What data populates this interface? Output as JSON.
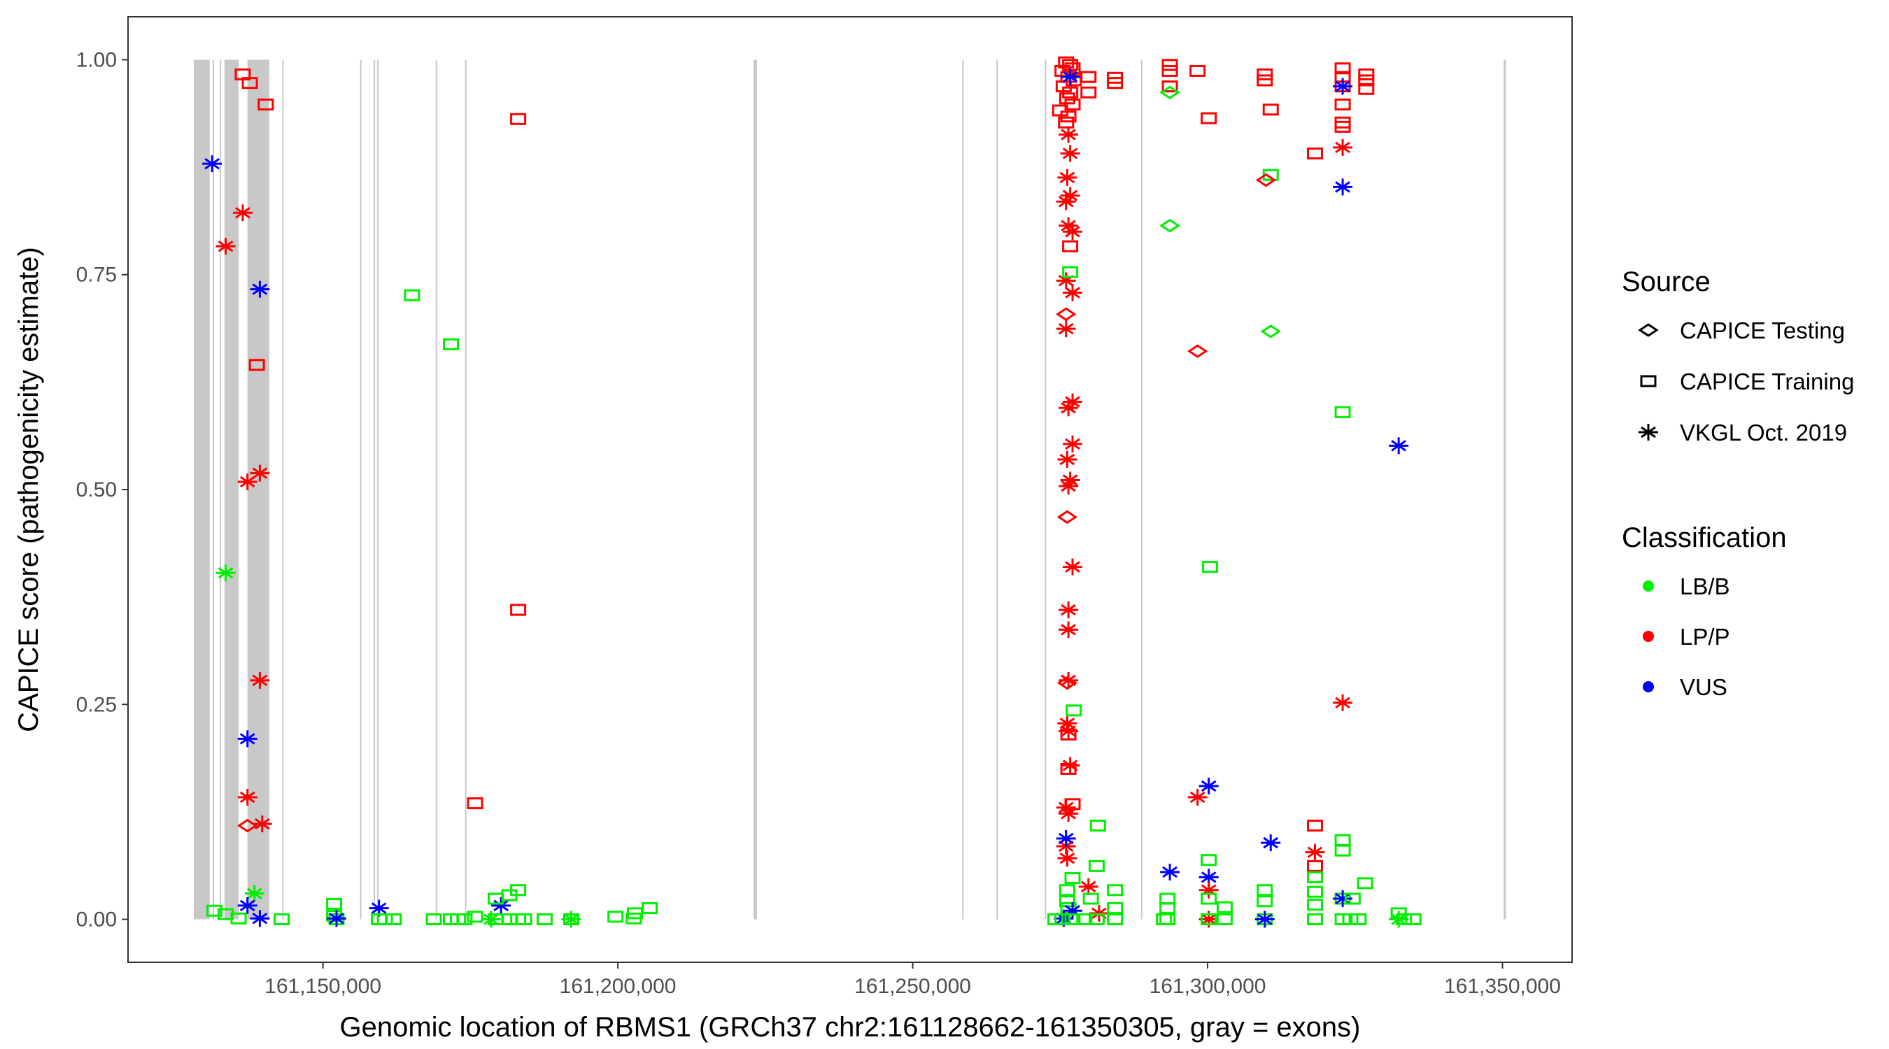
{
  "chart_data": {
    "type": "scatter",
    "title": "",
    "xlabel": "Genomic location of RBMS1 (GRCh37 chr2:161128662-161350305, gray = exons)",
    "ylabel": "CAPICE score (pathogenicity estimate)",
    "xlim": [
      161116950,
      161361800
    ],
    "ylim": [
      -0.05,
      1.05
    ],
    "x_ticks": [
      161150000,
      161200000,
      161250000,
      161300000,
      161350000
    ],
    "x_tick_labels": [
      "161,150,000",
      "161,200,000",
      "161,250,000",
      "161,300,000",
      "161,350,000"
    ],
    "y_ticks": [
      0,
      0.25,
      0.5,
      0.75,
      1.0
    ],
    "y_tick_labels": [
      "0.00",
      "0.25",
      "0.50",
      "0.75",
      "1.00"
    ],
    "grid": false,
    "legend_placement": "right",
    "legend": {
      "source_title": "Source",
      "sources": [
        "CAPICE Testing",
        "CAPICE Training",
        "VKGL Oct. 2019"
      ],
      "source_shapes": [
        "diamond",
        "square",
        "star"
      ],
      "class_title": "Classification",
      "classes": [
        "LB/B",
        "LP/P",
        "VUS"
      ],
      "class_colors": [
        "#00ee00",
        "#ff0000",
        "#0000ff"
      ]
    },
    "exons": [
      [
        161128100,
        161130800
      ],
      [
        161131300,
        161131500
      ],
      [
        161132500,
        161132700
      ],
      [
        161133300,
        161135700
      ],
      [
        161137200,
        161140900
      ],
      [
        161143100,
        161143300
      ],
      [
        161156300,
        161156500
      ],
      [
        161158600,
        161158800
      ],
      [
        161159200,
        161159400
      ],
      [
        161169100,
        161169300
      ],
      [
        161174100,
        161174300
      ],
      [
        161223000,
        161223600
      ],
      [
        161258400,
        161258600
      ],
      [
        161264200,
        161264400
      ],
      [
        161272400,
        161272600
      ],
      [
        161288700,
        161288900
      ],
      [
        161350200,
        161350600
      ]
    ],
    "points_format": [
      "position",
      "score",
      "source_index",
      "class_index"
    ],
    "points": [
      [
        161136400,
        0.983,
        1,
        1
      ],
      [
        161137600,
        0.973,
        1,
        1
      ],
      [
        161140300,
        0.948,
        1,
        1
      ],
      [
        161131200,
        0.879,
        2,
        2
      ],
      [
        161136400,
        0.822,
        2,
        1
      ],
      [
        161133500,
        0.783,
        2,
        1
      ],
      [
        161139300,
        0.733,
        2,
        2
      ],
      [
        161138800,
        0.645,
        1,
        1
      ],
      [
        161139300,
        0.519,
        2,
        1
      ],
      [
        161137200,
        0.509,
        2,
        1
      ],
      [
        161133500,
        0.403,
        2,
        0
      ],
      [
        161183100,
        0.931,
        1,
        1
      ],
      [
        161183100,
        0.36,
        1,
        1
      ],
      [
        161139300,
        0.278,
        2,
        1
      ],
      [
        161137200,
        0.21,
        2,
        2
      ],
      [
        161137200,
        0.142,
        2,
        1
      ],
      [
        161137200,
        0.109,
        0,
        1
      ],
      [
        161139700,
        0.111,
        2,
        1
      ],
      [
        161175800,
        0.135,
        1,
        1
      ],
      [
        161165100,
        0.726,
        1,
        0
      ],
      [
        161171700,
        0.669,
        1,
        0
      ],
      [
        161138400,
        0.03,
        2,
        0
      ],
      [
        161137200,
        0.016,
        2,
        2
      ],
      [
        161139300,
        0.001,
        2,
        2
      ],
      [
        161131600,
        0.01,
        1,
        0
      ],
      [
        161133500,
        0.006,
        1,
        0
      ],
      [
        161135700,
        0.001,
        1,
        0
      ],
      [
        161143000,
        0,
        1,
        0
      ],
      [
        161151900,
        0.018,
        1,
        0
      ],
      [
        161151900,
        0.004,
        1,
        0
      ],
      [
        161152300,
        0,
        1,
        0
      ],
      [
        161152300,
        0.001,
        2,
        2
      ],
      [
        161159500,
        0.013,
        2,
        2
      ],
      [
        161159500,
        0,
        1,
        0
      ],
      [
        161160500,
        0,
        1,
        0
      ],
      [
        161162000,
        0,
        1,
        0
      ],
      [
        161168800,
        0,
        1,
        0
      ],
      [
        161171700,
        0,
        1,
        0
      ],
      [
        161172900,
        0,
        1,
        0
      ],
      [
        161174000,
        0,
        1,
        0
      ],
      [
        161175800,
        0.003,
        1,
        0
      ],
      [
        161180200,
        0.016,
        2,
        2
      ],
      [
        161179300,
        0.024,
        1,
        0
      ],
      [
        161181600,
        0.028,
        1,
        0
      ],
      [
        161183100,
        0.034,
        1,
        0
      ],
      [
        161179300,
        0,
        1,
        0
      ],
      [
        161181600,
        0,
        1,
        0
      ],
      [
        161183100,
        0,
        1,
        0
      ],
      [
        161184100,
        0,
        1,
        0
      ],
      [
        161178500,
        0,
        2,
        0
      ],
      [
        161187600,
        0,
        1,
        0
      ],
      [
        161192100,
        0,
        1,
        0
      ],
      [
        161192100,
        0,
        2,
        0
      ],
      [
        161199600,
        0.003,
        1,
        0
      ],
      [
        161202700,
        0.001,
        1,
        0
      ],
      [
        161202900,
        0.007,
        1,
        0
      ],
      [
        161205400,
        0.013,
        1,
        0
      ],
      [
        161276000,
        0.997,
        1,
        1
      ],
      [
        161276700,
        0.994,
        1,
        1
      ],
      [
        161277100,
        0.99,
        1,
        1
      ],
      [
        161275400,
        0.987,
        1,
        1
      ],
      [
        161276400,
        0.98,
        1,
        1
      ],
      [
        161277300,
        0.976,
        1,
        1
      ],
      [
        161275600,
        0.969,
        1,
        1
      ],
      [
        161276700,
        0.962,
        1,
        1
      ],
      [
        161276200,
        0.955,
        1,
        1
      ],
      [
        161277100,
        0.948,
        1,
        1
      ],
      [
        161275000,
        0.941,
        1,
        1
      ],
      [
        161276400,
        0.934,
        1,
        1
      ],
      [
        161276000,
        0.927,
        1,
        1
      ],
      [
        161279800,
        0.98,
        1,
        1
      ],
      [
        161279800,
        0.962,
        1,
        1
      ],
      [
        161284300,
        0.979,
        1,
        1
      ],
      [
        161284300,
        0.973,
        1,
        1
      ],
      [
        161276700,
        0.98,
        2,
        2
      ],
      [
        161276400,
        0.913,
        2,
        1
      ],
      [
        161276700,
        0.891,
        2,
        1
      ],
      [
        161276200,
        0.863,
        2,
        1
      ],
      [
        161276700,
        0.842,
        2,
        1
      ],
      [
        161276000,
        0.835,
        2,
        1
      ],
      [
        161276400,
        0.807,
        2,
        1
      ],
      [
        161277100,
        0.8,
        2,
        1
      ],
      [
        161276000,
        0.743,
        2,
        1
      ],
      [
        161277100,
        0.729,
        2,
        1
      ],
      [
        161276000,
        0.687,
        2,
        1
      ],
      [
        161277100,
        0.602,
        2,
        1
      ],
      [
        161276400,
        0.595,
        2,
        1
      ],
      [
        161277100,
        0.553,
        2,
        1
      ],
      [
        161276200,
        0.535,
        2,
        1
      ],
      [
        161276700,
        0.511,
        2,
        1
      ],
      [
        161276400,
        0.504,
        2,
        1
      ],
      [
        161277100,
        0.41,
        2,
        1
      ],
      [
        161276400,
        0.36,
        2,
        1
      ],
      [
        161276400,
        0.337,
        2,
        1
      ],
      [
        161276400,
        0.278,
        2,
        1
      ],
      [
        161276200,
        0.228,
        2,
        1
      ],
      [
        161276400,
        0.219,
        2,
        1
      ],
      [
        161276700,
        0.179,
        2,
        1
      ],
      [
        161276000,
        0.13,
        2,
        1
      ],
      [
        161276400,
        0.123,
        2,
        1
      ],
      [
        161276000,
        0.085,
        2,
        1
      ],
      [
        161276200,
        0.071,
        2,
        1
      ],
      [
        161279800,
        0.038,
        2,
        1
      ],
      [
        161281600,
        0.007,
        2,
        1
      ],
      [
        161276000,
        0.704,
        0,
        1
      ],
      [
        161276200,
        0.468,
        0,
        1
      ],
      [
        161276200,
        0.275,
        0,
        1
      ],
      [
        161276700,
        0.783,
        1,
        1
      ],
      [
        161277100,
        0.134,
        1,
        1
      ],
      [
        161276400,
        0.175,
        1,
        1
      ],
      [
        161276400,
        0.215,
        1,
        1
      ],
      [
        161276700,
        0.753,
        1,
        0
      ],
      [
        161277300,
        0.243,
        1,
        0
      ],
      [
        161281400,
        0.109,
        1,
        0
      ],
      [
        161277100,
        0.048,
        1,
        0
      ],
      [
        161281200,
        0.062,
        1,
        0
      ],
      [
        161276200,
        0.034,
        1,
        0
      ],
      [
        161276200,
        0.021,
        1,
        0
      ],
      [
        161276400,
        0.013,
        1,
        0
      ],
      [
        161276000,
        0.094,
        2,
        2
      ],
      [
        161277100,
        0.01,
        2,
        2
      ],
      [
        161275600,
        0.001,
        2,
        2
      ],
      [
        161274200,
        0,
        1,
        0
      ],
      [
        161275400,
        0,
        1,
        0
      ],
      [
        161277100,
        0,
        1,
        0
      ],
      [
        161279100,
        0,
        1,
        0
      ],
      [
        161281200,
        0,
        1,
        0
      ],
      [
        161284300,
        0,
        1,
        0
      ],
      [
        161284300,
        0.013,
        1,
        0
      ],
      [
        161284300,
        0.034,
        1,
        0
      ],
      [
        161280200,
        0.024,
        1,
        0
      ],
      [
        161293600,
        0.994,
        1,
        1
      ],
      [
        161293600,
        0.987,
        1,
        1
      ],
      [
        161293600,
        0.969,
        1,
        1
      ],
      [
        161293600,
        0.962,
        0,
        0
      ],
      [
        161298300,
        0.987,
        1,
        1
      ],
      [
        161293600,
        0.807,
        0,
        0
      ],
      [
        161300200,
        0.932,
        1,
        1
      ],
      [
        161298300,
        0.661,
        0,
        1
      ],
      [
        161298300,
        0.142,
        2,
        1
      ],
      [
        161293600,
        0.055,
        2,
        2
      ],
      [
        161293200,
        0.024,
        1,
        0
      ],
      [
        161293200,
        0.013,
        1,
        0
      ],
      [
        161293200,
        0,
        1,
        0
      ],
      [
        161292600,
        0,
        1,
        0
      ],
      [
        161300400,
        0.41,
        1,
        0
      ],
      [
        161300200,
        0.069,
        1,
        0
      ],
      [
        161300200,
        0.155,
        2,
        2
      ],
      [
        161300200,
        0.049,
        2,
        2
      ],
      [
        161300200,
        0.034,
        2,
        1
      ],
      [
        161300200,
        0,
        2,
        1
      ],
      [
        161300200,
        0.024,
        1,
        0
      ],
      [
        161302900,
        0.014,
        1,
        0
      ],
      [
        161302900,
        0,
        1,
        0
      ],
      [
        161300200,
        0,
        1,
        0
      ],
      [
        161309700,
        0.983,
        1,
        1
      ],
      [
        161309700,
        0.976,
        1,
        1
      ],
      [
        161310700,
        0.942,
        1,
        1
      ],
      [
        161310700,
        0.866,
        1,
        0
      ],
      [
        161309900,
        0.86,
        0,
        1
      ],
      [
        161310700,
        0.684,
        0,
        0
      ],
      [
        161310700,
        0.089,
        2,
        2
      ],
      [
        161309700,
        0.034,
        1,
        0
      ],
      [
        161309700,
        0.021,
        1,
        0
      ],
      [
        161309700,
        0,
        1,
        0
      ],
      [
        161309700,
        0,
        2,
        2
      ],
      [
        161318200,
        0.891,
        1,
        1
      ],
      [
        161318200,
        0.109,
        1,
        1
      ],
      [
        161318200,
        0.078,
        2,
        1
      ],
      [
        161318200,
        0.062,
        1,
        1
      ],
      [
        161318200,
        0.049,
        1,
        0
      ],
      [
        161318200,
        0.032,
        1,
        0
      ],
      [
        161318200,
        0.017,
        1,
        0
      ],
      [
        161318200,
        0,
        1,
        0
      ],
      [
        161322900,
        0.99,
        1,
        1
      ],
      [
        161322900,
        0.98,
        1,
        1
      ],
      [
        161322900,
        0.969,
        1,
        1
      ],
      [
        161322900,
        0.948,
        1,
        1
      ],
      [
        161322900,
        0.927,
        1,
        1
      ],
      [
        161322900,
        0.922,
        1,
        1
      ],
      [
        161322900,
        0.969,
        2,
        2
      ],
      [
        161322900,
        0.898,
        2,
        1
      ],
      [
        161322900,
        0.852,
        2,
        2
      ],
      [
        161322900,
        0.59,
        1,
        0
      ],
      [
        161322900,
        0.252,
        2,
        1
      ],
      [
        161322900,
        0.092,
        1,
        0
      ],
      [
        161322900,
        0.08,
        1,
        0
      ],
      [
        161322900,
        0.024,
        1,
        0
      ],
      [
        161322900,
        0.024,
        2,
        2
      ],
      [
        161322900,
        0,
        1,
        0
      ],
      [
        161324600,
        0.024,
        1,
        0
      ],
      [
        161326700,
        0.042,
        1,
        0
      ],
      [
        161324200,
        0,
        1,
        0
      ],
      [
        161325600,
        0,
        1,
        0
      ],
      [
        161326900,
        0.983,
        1,
        1
      ],
      [
        161326900,
        0.976,
        1,
        1
      ],
      [
        161326900,
        0.966,
        1,
        1
      ],
      [
        161332400,
        0.551,
        2,
        2
      ],
      [
        161332400,
        0.007,
        1,
        0
      ],
      [
        161333300,
        0,
        1,
        0
      ],
      [
        161334900,
        0,
        1,
        0
      ],
      [
        161332400,
        0,
        2,
        0
      ]
    ]
  }
}
